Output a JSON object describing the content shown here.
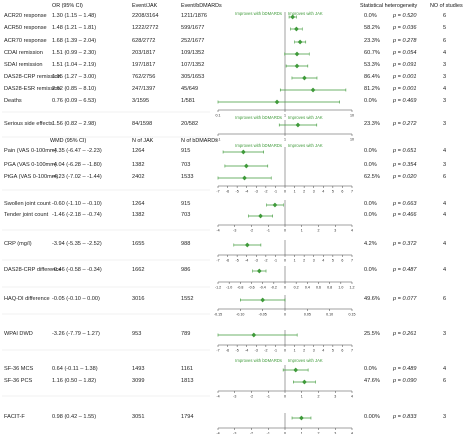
{
  "headers": {
    "or": "OR (95% CI)",
    "events_jak": "Event/JAK",
    "events_bdmard": "Event/bDMARDs",
    "wmd": "WMD (95% CI)",
    "n_jak": "N of JAK",
    "n_bdmard": "N of bDMARDs",
    "heterogeneity": "Statistical heterogeneity",
    "n_studies": "NO of studies"
  },
  "favor_left": "Improves with bDMARDs",
  "favor_right": "Improves with JAK",
  "chart_data": {
    "type": "forest",
    "panels": [
      {
        "axis": {
          "min": 0.1,
          "max": 10,
          "scale": "log",
          "ticks": [
            "0.1",
            "1",
            "10"
          ],
          "ref": 1
        },
        "rows": [
          {
            "label": "ACR20 response",
            "est": "1.30 (1.15 – 1.48)",
            "n1": "2208/3164",
            "n2": "1211/1876",
            "i2": "0.0%",
            "p": "p = 0.520",
            "k": "6",
            "value": 1.3,
            "lo": 1.15,
            "hi": 1.48
          },
          {
            "label": "ACR50 response",
            "est": "1.48 (1.21 – 1.81)",
            "n1": "1222/2772",
            "n2": "599/1677",
            "i2": "58.2%",
            "p": "p = 0.036",
            "k": "5",
            "value": 1.48,
            "lo": 1.21,
            "hi": 1.81
          },
          {
            "label": "ACR70 response",
            "est": "1.68 (1.39 – 2.04)",
            "n1": "628/2772",
            "n2": "252/1677",
            "i2": "23.3%",
            "p": "p = 0.278",
            "k": "6",
            "value": 1.68,
            "lo": 1.39,
            "hi": 2.04
          },
          {
            "label": "CDAI remission",
            "est": "1.51 (0.99 – 2.30)",
            "n1": "203/1817",
            "n2": "109/1352",
            "i2": "60.7%",
            "p": "p = 0.054",
            "k": "4",
            "value": 1.51,
            "lo": 0.99,
            "hi": 2.3
          },
          {
            "label": "SDAI remission",
            "est": "1.51 (1.04 – 2.19)",
            "n1": "197/1817",
            "n2": "107/1352",
            "i2": "53.3%",
            "p": "p = 0.091",
            "k": "3",
            "value": 1.51,
            "lo": 1.04,
            "hi": 2.19
          },
          {
            "label": "DAS28-CRP remission",
            "est": "1.95 (1.27 – 3.00)",
            "n1": "762/2756",
            "n2": "305/1653",
            "i2": "86.4%",
            "p": "p = 0.001",
            "k": "3",
            "value": 1.95,
            "lo": 1.27,
            "hi": 3.0
          },
          {
            "label": "DAS28-ESR remission",
            "est": "2.62 (0.85 – 8.10)",
            "n1": "247/1397",
            "n2": "45/649",
            "i2": "81.2%",
            "p": "p = 0.001",
            "k": "4",
            "value": 2.62,
            "lo": 0.85,
            "hi": 8.1
          },
          {
            "label": "Deaths",
            "est": "0.76 (0.09 – 6.53)",
            "n1": "3/1595",
            "n2": "1/581",
            "i2": "0.0%",
            "p": "p = 0.469",
            "k": "3",
            "value": 0.76,
            "lo": 0.09,
            "hi": 6.53
          }
        ]
      },
      {
        "axis": {
          "min": 0.1,
          "max": 10,
          "scale": "log",
          "ticks": [
            "0.1",
            "1",
            "10"
          ],
          "ref": 1
        },
        "rows": [
          {
            "label": "Serious side effects",
            "est": "1.56 (0.82 – 2.98)",
            "n1": "84/1598",
            "n2": "20/582",
            "i2": "23.3%",
            "p": "p = 0.272",
            "k": "3",
            "value": 1.56,
            "lo": 0.82,
            "hi": 2.98
          }
        ]
      },
      {
        "axis": {
          "min": -7,
          "max": 7,
          "scale": "linear",
          "ticks": [
            "-7",
            "-6",
            "-5",
            "-4",
            "-3",
            "-2",
            "-1",
            "0",
            "1",
            "2",
            "3",
            "4",
            "5",
            "6",
            "7"
          ],
          "ref": 0
        },
        "rows": [
          {
            "label": "Pain (VAS 0-100mm)",
            "est": "-4.35 (-6.47 – -2.23)",
            "n1": "1264",
            "n2": "915",
            "i2": "0.0%",
            "p": "p = 0.651",
            "k": "4",
            "value": -4.35,
            "lo": -6.47,
            "hi": -2.23
          },
          {
            "label": "PGA (VAS 0-100mm)",
            "est": "-4.04 (-6.28 – -1.80)",
            "n1": "1382",
            "n2": "703",
            "i2": "0.0%",
            "p": "p = 0.354",
            "k": "3",
            "value": -4.04,
            "lo": -6.28,
            "hi": -1.8
          },
          {
            "label": "PtGA (VAS 0-100mm)",
            "est": "-4.23 (-7.02 – -1.44)",
            "n1": "2402",
            "n2": "1533",
            "i2": "62.5%",
            "p": "p = 0.020",
            "k": "6",
            "value": -4.23,
            "lo": -7.02,
            "hi": -1.44
          }
        ]
      },
      {
        "axis": {
          "min": -4,
          "max": 4,
          "scale": "linear",
          "ticks": [
            "-4",
            "-3",
            "-2",
            "-1",
            "0",
            "1",
            "2",
            "3",
            "4"
          ],
          "ref": 0
        },
        "rows": [
          {
            "label": "Swollen joint count",
            "est": "-0.60 (-1.10 – -0.10)",
            "n1": "1264",
            "n2": "915",
            "i2": "0.0%",
            "p": "p = 0.663",
            "k": "4",
            "value": -0.6,
            "lo": -1.1,
            "hi": -0.1
          },
          {
            "label": "Tender joint count",
            "est": "-1.46 (-2.18 – -0.74)",
            "n1": "1382",
            "n2": "703",
            "i2": "0.0%",
            "p": "p = 0.466",
            "k": "4",
            "value": -1.46,
            "lo": -2.18,
            "hi": -0.74
          }
        ]
      },
      {
        "axis": {
          "min": -7,
          "max": 7,
          "scale": "linear",
          "ticks": [
            "-7",
            "-6",
            "-5",
            "-4",
            "-3",
            "-2",
            "-1",
            "0",
            "1",
            "2",
            "3",
            "4",
            "5",
            "6",
            "7"
          ],
          "ref": 0
        },
        "rows": [
          {
            "label": "CRP (mg/l)",
            "est": "-3.94 (-5.35 – -2.52)",
            "n1": "1655",
            "n2": "988",
            "i2": "4.2%",
            "p": "p = 0.372",
            "k": "4",
            "value": -3.94,
            "lo": -5.35,
            "hi": -2.52
          }
        ]
      },
      {
        "axis": {
          "min": -1.2,
          "max": 1.2,
          "scale": "linear",
          "ticks": [
            "-1.2",
            "-1.0",
            "-0.8",
            "-0.6",
            "-0.4",
            "-0.2",
            "0",
            "0.2",
            "0.4",
            "0.6",
            "0.8",
            "1.0",
            "1.2"
          ],
          "ref": 0
        },
        "rows": [
          {
            "label": "DAS28-CRP difference",
            "est": "-0.46 (-0.58 – -0.34)",
            "n1": "1662",
            "n2": "986",
            "i2": "0.0%",
            "p": "p = 0.487",
            "k": "4",
            "value": -0.46,
            "lo": -0.58,
            "hi": -0.34
          }
        ]
      },
      {
        "axis": {
          "min": -0.15,
          "max": 0.15,
          "scale": "linear",
          "ticks": [
            "-0.15",
            "-0.10",
            "-0.05",
            "0",
            "0.05",
            "0.10",
            "0.15"
          ],
          "ref": 0
        },
        "rows": [
          {
            "label": "HAQ-DI difference",
            "est": "-0.05 (-0.10 – 0.00)",
            "n1": "3016",
            "n2": "1552",
            "i2": "49.6%",
            "p": "p = 0.077",
            "k": "6",
            "value": -0.05,
            "lo": -0.1,
            "hi": 0.0
          }
        ]
      },
      {
        "axis": {
          "min": -7,
          "max": 7,
          "scale": "linear",
          "ticks": [
            "-7",
            "-6",
            "-5",
            "-4",
            "-3",
            "-2",
            "-1",
            "0",
            "1",
            "2",
            "3",
            "4",
            "5",
            "6",
            "7"
          ],
          "ref": 0
        },
        "rows": [
          {
            "label": "WPAI DWD",
            "est": "-3.26 (-7.79 – 1.27)",
            "n1": "953",
            "n2": "789",
            "i2": "25.5%",
            "p": "p = 0.261",
            "k": "3",
            "value": -3.26,
            "lo": -7.79,
            "hi": 1.27
          }
        ]
      },
      {
        "axis": {
          "min": -4,
          "max": 4,
          "scale": "linear",
          "ticks": [
            "-4",
            "-3",
            "-2",
            "-1",
            "0",
            "1",
            "2",
            "3",
            "4"
          ],
          "ref": 0
        },
        "rows": [
          {
            "label": "SF-36 MCS",
            "est": "0.64 (-0.11 – 1.38)",
            "n1": "1493",
            "n2": "1161",
            "i2": "0.0%",
            "p": "p = 0.489",
            "k": "4",
            "value": 0.64,
            "lo": -0.11,
            "hi": 1.38
          },
          {
            "label": "SF-36 PCS",
            "est": "1.16 (0.50 – 1.82)",
            "n1": "3099",
            "n2": "1813",
            "i2": "47.6%",
            "p": "p = 0.090",
            "k": "6",
            "value": 1.16,
            "lo": 0.5,
            "hi": 1.82
          }
        ]
      },
      {
        "axis": {
          "min": -4,
          "max": 4,
          "scale": "linear",
          "ticks": [
            "-4",
            "-3",
            "-2",
            "-1",
            "0",
            "1",
            "2",
            "3",
            "4"
          ],
          "ref": 0
        },
        "rows": [
          {
            "label": "FACIT-F",
            "est": "0.98 (0.42 – 1.55)",
            "n1": "3051",
            "n2": "1794",
            "i2": "0.00%",
            "p": "p = 0.833",
            "k": "3",
            "value": 0.98,
            "lo": 0.42,
            "hi": 1.55
          }
        ]
      }
    ]
  },
  "colors": {
    "estimate": "#3f9a3a",
    "axis": "#444444",
    "text": "#222222"
  }
}
